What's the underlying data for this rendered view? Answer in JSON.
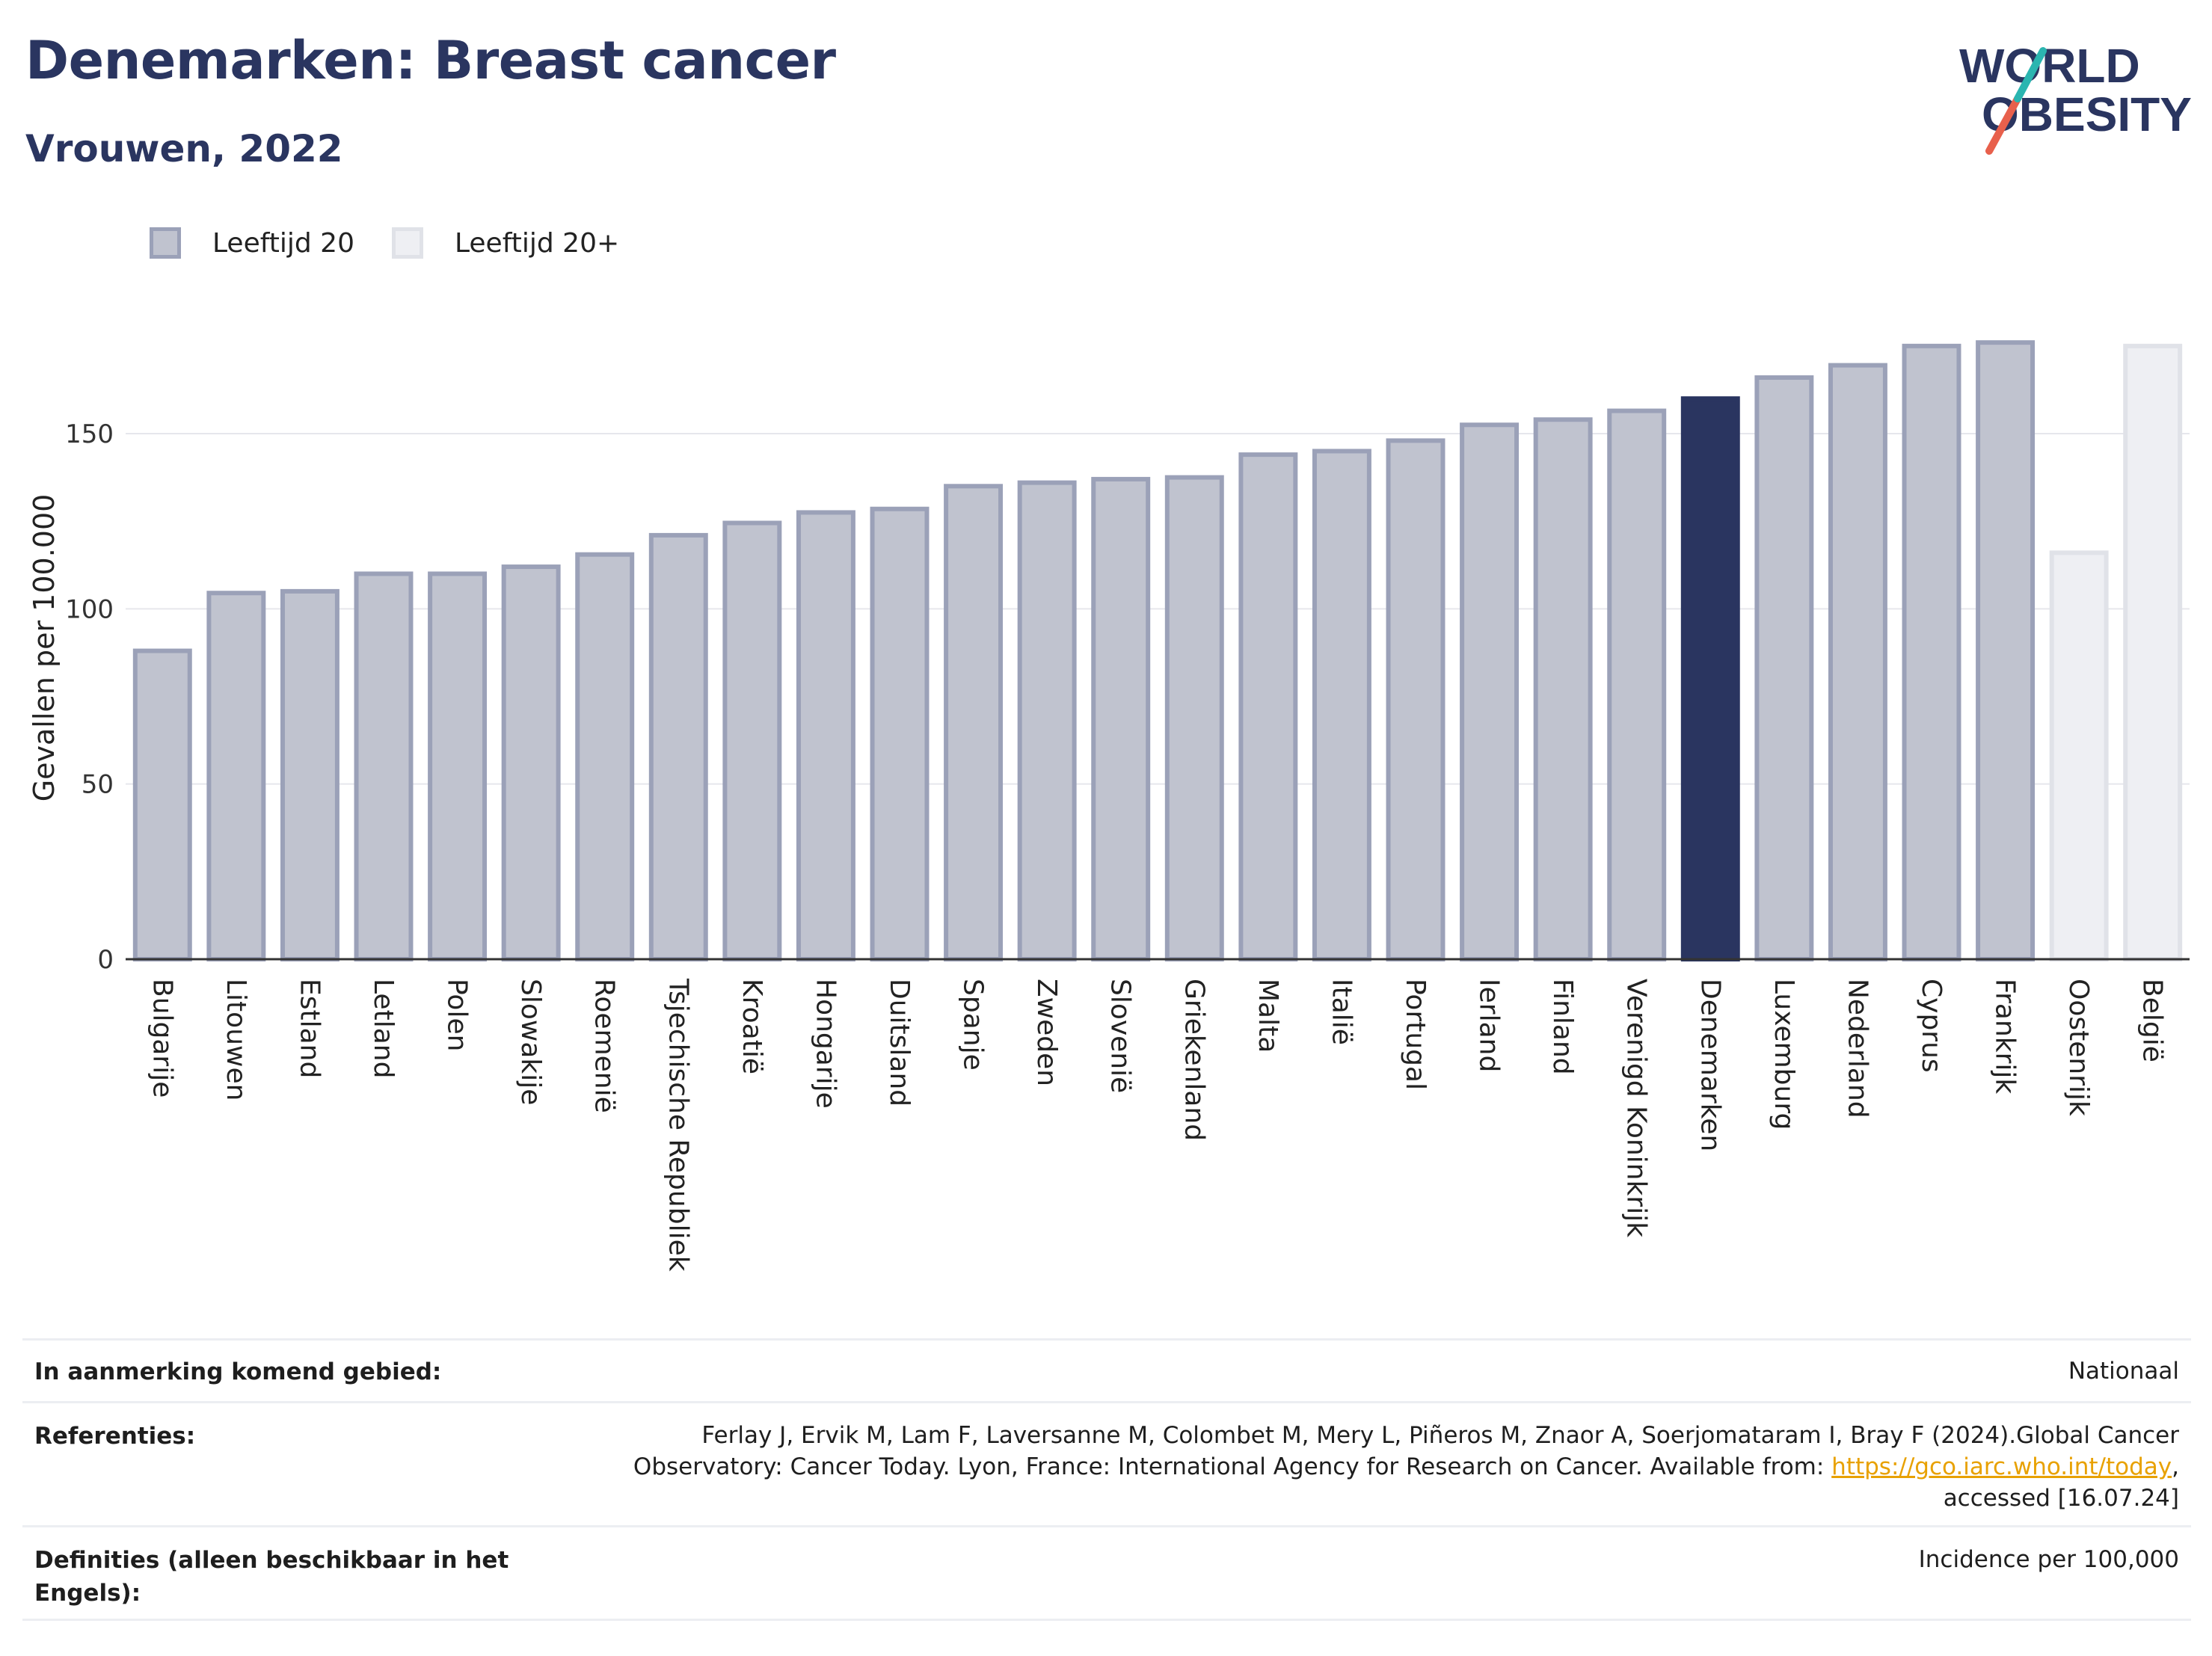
{
  "header": {
    "title": "Denemarken: Breast cancer",
    "subtitle": "Vrouwen, 2022",
    "logo_line1": "WORLD",
    "logo_line2": "OBESITY"
  },
  "legend": {
    "items": [
      {
        "label": "Leeftijd 20",
        "color": "#9ba1b8"
      },
      {
        "label": "Leeftijd 20+",
        "color": "#e0e2e8"
      }
    ]
  },
  "chart_data": {
    "type": "bar",
    "title": "Denemarken: Breast cancer",
    "subtitle": "Vrouwen, 2022",
    "ylabel": "Gevallen per 100.000",
    "xlabel": "",
    "ylim": [
      0,
      182
    ],
    "yticks": [
      0,
      50,
      100,
      150
    ],
    "categories": [
      "Bulgarije",
      "Litouwen",
      "Estland",
      "Letland",
      "Polen",
      "Slowakije",
      "Roemenië",
      "Tsjechische Republiek",
      "Kroatië",
      "Hongarije",
      "Duitsland",
      "Spanje",
      "Zweden",
      "Slovenië",
      "Griekenland",
      "Malta",
      "Italië",
      "Portugal",
      "Ierland",
      "Finland",
      "Verenigd Koninkrijk",
      "Denemarken",
      "Luxemburg",
      "Nederland",
      "Cyprus",
      "Frankrijk",
      "Oostenrijk",
      "België"
    ],
    "values": [
      88,
      104.5,
      105,
      110,
      110,
      112,
      115.5,
      121,
      124.5,
      127.5,
      128.5,
      135,
      136,
      137,
      137.5,
      144,
      145,
      148,
      152.5,
      154,
      156.5,
      160,
      166,
      169.5,
      175,
      176,
      116,
      175
    ],
    "group": [
      "Leeftijd 20",
      "Leeftijd 20",
      "Leeftijd 20",
      "Leeftijd 20",
      "Leeftijd 20",
      "Leeftijd 20",
      "Leeftijd 20",
      "Leeftijd 20",
      "Leeftijd 20",
      "Leeftijd 20",
      "Leeftijd 20",
      "Leeftijd 20",
      "Leeftijd 20",
      "Leeftijd 20",
      "Leeftijd 20",
      "Leeftijd 20",
      "Leeftijd 20",
      "Leeftijd 20",
      "Leeftijd 20",
      "Leeftijd 20",
      "Leeftijd 20",
      "Leeftijd 20",
      "Leeftijd 20",
      "Leeftijd 20",
      "Leeftijd 20",
      "Leeftijd 20",
      "Leeftijd 20+",
      "Leeftijd 20+"
    ],
    "highlight": "Denemarken",
    "colors": {
      "bar_fill": "#c0c3cf",
      "bar_stroke": "#9ba1b8",
      "bar20plus_fill": "#eeeff3",
      "bar20plus_stroke": "#e0e2e8",
      "highlight": "#2a3560",
      "grid": "#e6e7ec",
      "axis": "#333333"
    },
    "grid": true,
    "legend_position": "top-left"
  },
  "meta": {
    "area_label": "In aanmerking komend gebied:",
    "area_value": "Nationaal",
    "refs_label": "Referenties:",
    "refs_line1": "Ferlay J, Ervik M, Lam F, Laversanne M, Colombet M, Mery L, Piñeros M, Znaor A, Soerjomataram I, Bray F (2024).Global Cancer",
    "refs_line2_pre": "Observatory: Cancer Today. Lyon, France: International Agency for Research on Cancer. Available from: ",
    "refs_link": "https://gco.iarc.who.int/today",
    "refs_line2_post": ",",
    "refs_line3": "accessed [16.07.24]",
    "def_label": "Definities (alleen beschikbaar in het Engels):",
    "def_value": "Incidence per 100,000"
  }
}
